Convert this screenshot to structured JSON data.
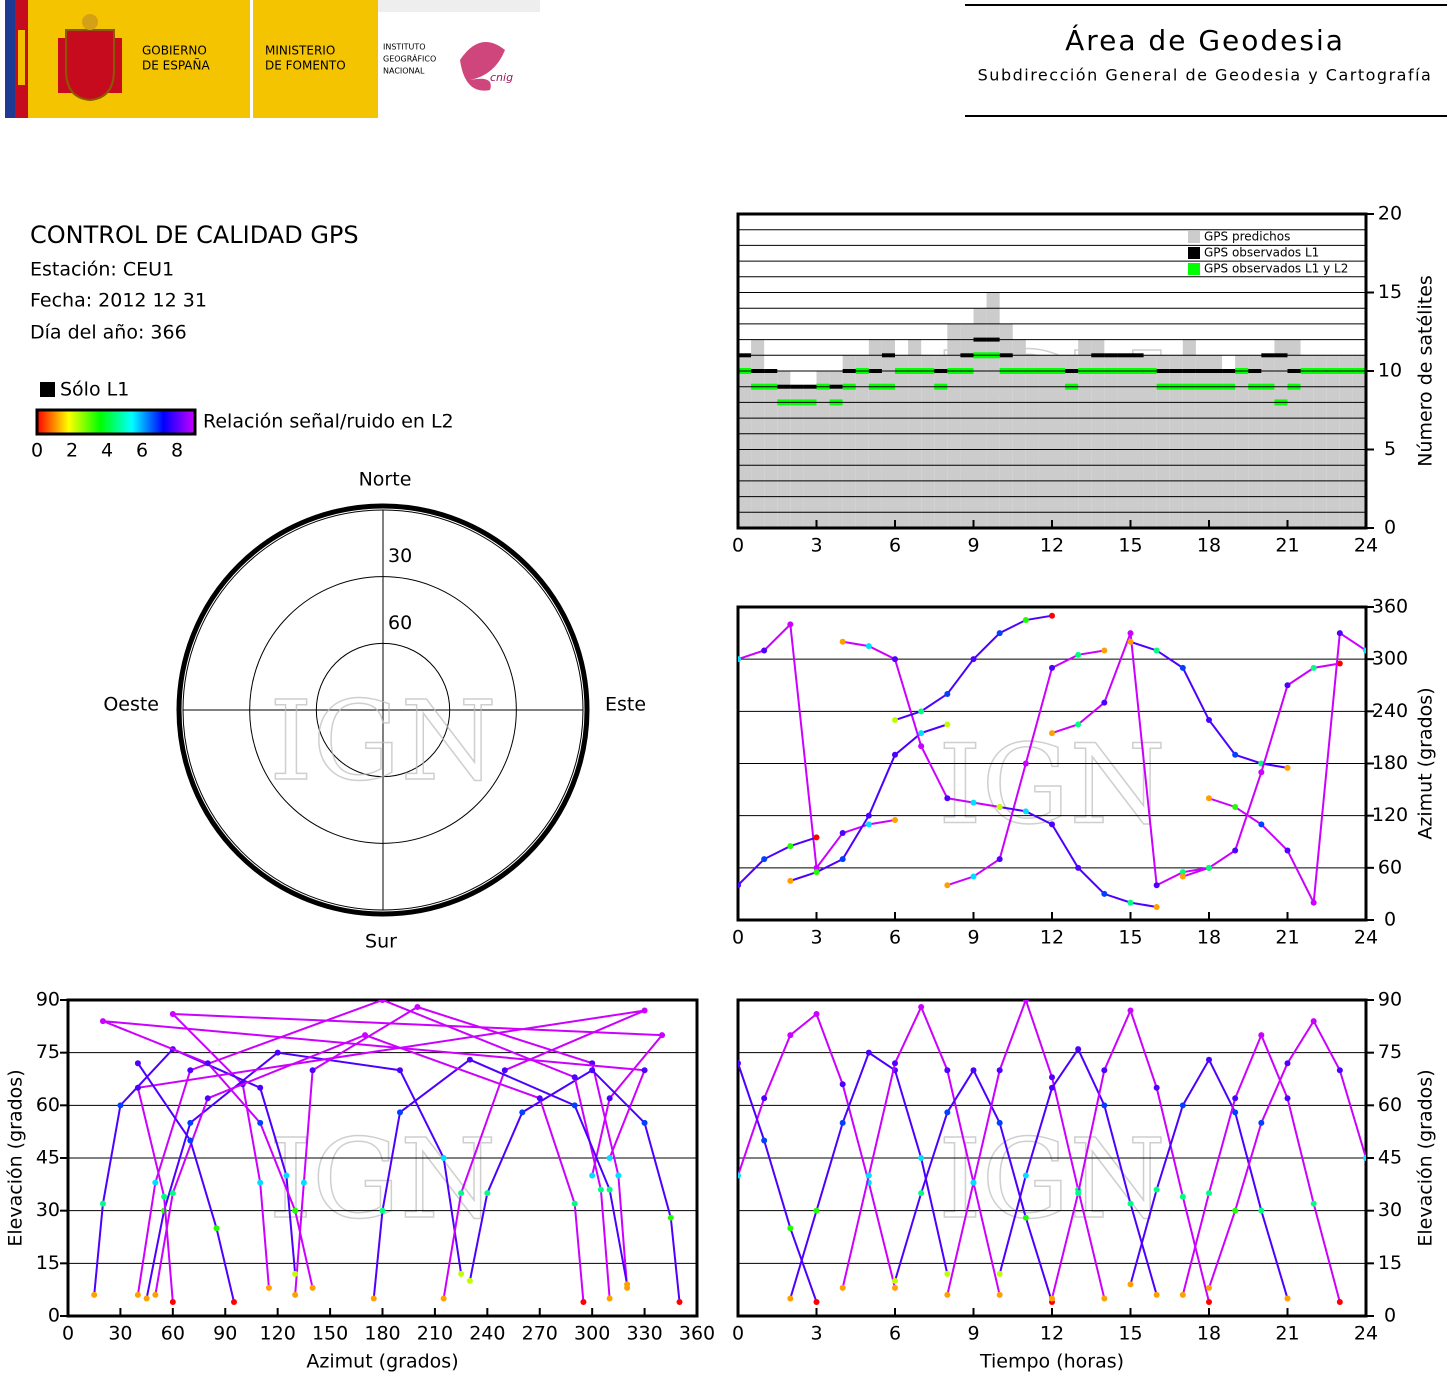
{
  "header": {
    "gobierno": [
      "GOBIERNO",
      "DE ESPAÑA"
    ],
    "ministerio": [
      "MINISTERIO",
      "DE FOMENTO"
    ],
    "instituto": [
      "INSTITUTO",
      "GEOGRÁFICO",
      "NACIONAL"
    ],
    "cnig": "cnig",
    "title": "Área de Geodesia",
    "subtitle": "Subdirección General de Geodesia y Cartografía"
  },
  "info": {
    "title": "CONTROL DE CALIDAD GPS",
    "station": "Estación: CEU1",
    "date": "Fecha: 2012 12 31",
    "doy": "Día del año: 366",
    "legend_l1": "Sólo L1",
    "colorbar_label": "Relación señal/ruido en L2",
    "colorbar_ticks": [
      0,
      2,
      4,
      6,
      8
    ],
    "colormap": [
      "#ff0000",
      "#ffff00",
      "#00ff00",
      "#00ffff",
      "#0000ff",
      "#cc00ff"
    ]
  },
  "watermark": "IGN",
  "satellites": [
    {
      "time": [
        0,
        1,
        2,
        3,
        4,
        5,
        6
      ],
      "elevation": [
        40,
        62,
        80,
        86,
        66,
        38,
        8
      ],
      "azimuth": [
        300,
        310,
        340,
        60,
        100,
        110,
        115
      ],
      "snr": [
        5,
        7,
        8,
        8,
        7,
        5,
        1
      ]
    },
    {
      "time": [
        2,
        3,
        4,
        5,
        6,
        7,
        8
      ],
      "elevation": [
        5,
        30,
        55,
        75,
        70,
        45,
        12
      ],
      "azimuth": [
        45,
        55,
        70,
        120,
        190,
        215,
        225
      ],
      "snr": [
        1,
        3,
        6,
        7,
        7,
        5,
        2
      ]
    },
    {
      "time": [
        4,
        5,
        6,
        7,
        8,
        9,
        10
      ],
      "elevation": [
        8,
        40,
        72,
        88,
        70,
        38,
        6
      ],
      "azimuth": [
        320,
        315,
        300,
        200,
        140,
        135,
        130
      ],
      "snr": [
        1,
        5,
        7,
        8,
        7,
        5,
        1
      ]
    },
    {
      "time": [
        6,
        7,
        8,
        9,
        10,
        11,
        12
      ],
      "elevation": [
        10,
        35,
        58,
        70,
        55,
        28,
        4
      ],
      "azimuth": [
        230,
        240,
        260,
        300,
        330,
        345,
        350
      ],
      "snr": [
        2,
        4,
        6,
        7,
        6,
        3,
        0
      ]
    },
    {
      "time": [
        8,
        9,
        10,
        11,
        12,
        13,
        14
      ],
      "elevation": [
        6,
        38,
        70,
        90,
        68,
        36,
        5
      ],
      "azimuth": [
        40,
        50,
        70,
        180,
        290,
        305,
        310
      ],
      "snr": [
        1,
        5,
        7,
        8,
        7,
        4,
        1
      ]
    },
    {
      "time": [
        10,
        11,
        12,
        13,
        14,
        15,
        16
      ],
      "elevation": [
        12,
        40,
        65,
        76,
        60,
        32,
        6
      ],
      "azimuth": [
        130,
        125,
        110,
        60,
        30,
        20,
        15
      ],
      "snr": [
        2,
        5,
        7,
        7,
        6,
        4,
        1
      ]
    },
    {
      "time": [
        12,
        13,
        14,
        15,
        16,
        17,
        18
      ],
      "elevation": [
        5,
        35,
        70,
        87,
        65,
        34,
        4
      ],
      "azimuth": [
        215,
        225,
        250,
        330,
        40,
        55,
        60
      ],
      "snr": [
        1,
        4,
        7,
        8,
        7,
        4,
        0
      ]
    },
    {
      "time": [
        15,
        16,
        17,
        18,
        19,
        20,
        21
      ],
      "elevation": [
        9,
        36,
        60,
        73,
        58,
        30,
        5
      ],
      "azimuth": [
        320,
        310,
        290,
        230,
        190,
        180,
        175
      ],
      "snr": [
        1,
        4,
        6,
        7,
        6,
        4,
        1
      ]
    },
    {
      "time": [
        17,
        18,
        19,
        20,
        21,
        22,
        23
      ],
      "elevation": [
        6,
        35,
        62,
        80,
        62,
        32,
        4
      ],
      "azimuth": [
        50,
        60,
        80,
        170,
        270,
        290,
        295
      ],
      "snr": [
        1,
        4,
        7,
        8,
        7,
        4,
        0
      ]
    },
    {
      "time": [
        18,
        19,
        20,
        21,
        22,
        23,
        24
      ],
      "elevation": [
        8,
        30,
        55,
        72,
        84,
        70,
        45
      ],
      "azimuth": [
        140,
        130,
        110,
        80,
        20,
        330,
        310
      ],
      "snr": [
        1,
        3,
        6,
        7,
        8,
        7,
        5
      ]
    },
    {
      "time": [
        0,
        1,
        2,
        3
      ],
      "elevation": [
        72,
        50,
        25,
        4
      ],
      "azimuth": [
        40,
        70,
        85,
        95
      ],
      "snr": [
        7,
        6,
        3,
        0
      ]
    }
  ],
  "chart_data": [
    {
      "type": "step",
      "ylabel": "Número de satélites",
      "legend": "upper right",
      "grid": true,
      "x": [
        0,
        0.5,
        1,
        1.5,
        2,
        2.5,
        3,
        3.5,
        4,
        4.5,
        5,
        5.5,
        6,
        6.5,
        7,
        7.5,
        8,
        8.5,
        9,
        9.5,
        10,
        10.5,
        11,
        11.5,
        12,
        12.5,
        13,
        13.5,
        14,
        14.5,
        15,
        15.5,
        16,
        16.5,
        17,
        17.5,
        18,
        18.5,
        19,
        19.5,
        20,
        20.5,
        21,
        21.5,
        22,
        22.5,
        23,
        23.5
      ],
      "xlim": [
        0,
        24
      ],
      "xticks": [
        0,
        3,
        6,
        9,
        12,
        15,
        18,
        21,
        24
      ],
      "ylim": [
        0,
        20
      ],
      "yticks": [
        0,
        5,
        10,
        15,
        20
      ],
      "minor_yticks": [
        1,
        2,
        3,
        4,
        6,
        7,
        8,
        9,
        11,
        12,
        13,
        14,
        16,
        17,
        18,
        19
      ],
      "series": [
        {
          "name": "GPS predichos",
          "color": "#cccccc",
          "values": [
            11,
            12,
            10,
            10,
            9,
            9,
            10,
            10,
            11,
            11,
            12,
            12,
            11,
            12,
            11,
            11,
            13,
            13,
            14,
            15,
            13,
            12,
            11,
            11,
            11,
            11,
            12,
            12,
            11,
            11,
            11,
            11,
            11,
            11,
            12,
            11,
            11,
            10,
            11,
            11,
            11,
            12,
            12,
            11,
            11,
            11,
            11,
            11
          ]
        },
        {
          "name": "GPS observados L1",
          "color": "#000000",
          "values": [
            11,
            10,
            10,
            9,
            9,
            9,
            9,
            9,
            10,
            10,
            10,
            11,
            10,
            10,
            10,
            10,
            10,
            11,
            12,
            12,
            11,
            10,
            10,
            10,
            10,
            10,
            10,
            11,
            11,
            11,
            11,
            10,
            10,
            10,
            10,
            10,
            10,
            10,
            10,
            10,
            11,
            11,
            10,
            10,
            10,
            10,
            10,
            10
          ]
        },
        {
          "name": "GPS observados L1 y L2",
          "color": "#00ff00",
          "values": [
            10,
            9,
            9,
            8,
            8,
            8,
            9,
            8,
            9,
            10,
            9,
            9,
            10,
            10,
            10,
            9,
            10,
            10,
            11,
            11,
            10,
            10,
            10,
            10,
            10,
            9,
            10,
            10,
            10,
            10,
            10,
            10,
            9,
            9,
            9,
            9,
            9,
            9,
            10,
            9,
            9,
            8,
            9,
            10,
            10,
            10,
            10,
            10
          ]
        }
      ]
    },
    {
      "type": "tracks",
      "x_field": "time",
      "y_field": "azimuth",
      "ylabel": "Azimut (grados)",
      "grid": true,
      "xlim": [
        0,
        24
      ],
      "xticks": [
        0,
        3,
        6,
        9,
        12,
        15,
        18,
        21,
        24
      ],
      "ylim": [
        0,
        360
      ],
      "yticks": [
        0,
        60,
        120,
        180,
        240,
        300,
        360
      ]
    },
    {
      "type": "polar",
      "angle_field": "azimuth",
      "radial_field": "elevation",
      "rlim": [
        0,
        90
      ],
      "rticks": [
        30,
        60
      ],
      "directions": {
        "north": "Norte",
        "east": "Este",
        "south": "Sur",
        "west": "Oeste"
      }
    },
    {
      "type": "tracks",
      "x_field": "azimuth",
      "y_field": "elevation",
      "xlabel": "Azimut (grados)",
      "ylabel": "Elevación (grados)",
      "grid": true,
      "xlim": [
        0,
        360
      ],
      "xticks": [
        0,
        30,
        60,
        90,
        120,
        150,
        180,
        210,
        240,
        270,
        300,
        330,
        360
      ],
      "ylim": [
        0,
        90
      ],
      "yticks": [
        0,
        15,
        30,
        45,
        60,
        75,
        90
      ]
    },
    {
      "type": "tracks",
      "x_field": "time",
      "y_field": "elevation",
      "xlabel": "Tiempo (horas)",
      "ylabel": "Elevación (grados)",
      "grid": true,
      "xlim": [
        0,
        24
      ],
      "xticks": [
        0,
        3,
        6,
        9,
        12,
        15,
        18,
        21,
        24
      ],
      "ylim": [
        0,
        90
      ],
      "yticks": [
        0,
        15,
        30,
        45,
        60,
        75,
        90
      ]
    }
  ]
}
